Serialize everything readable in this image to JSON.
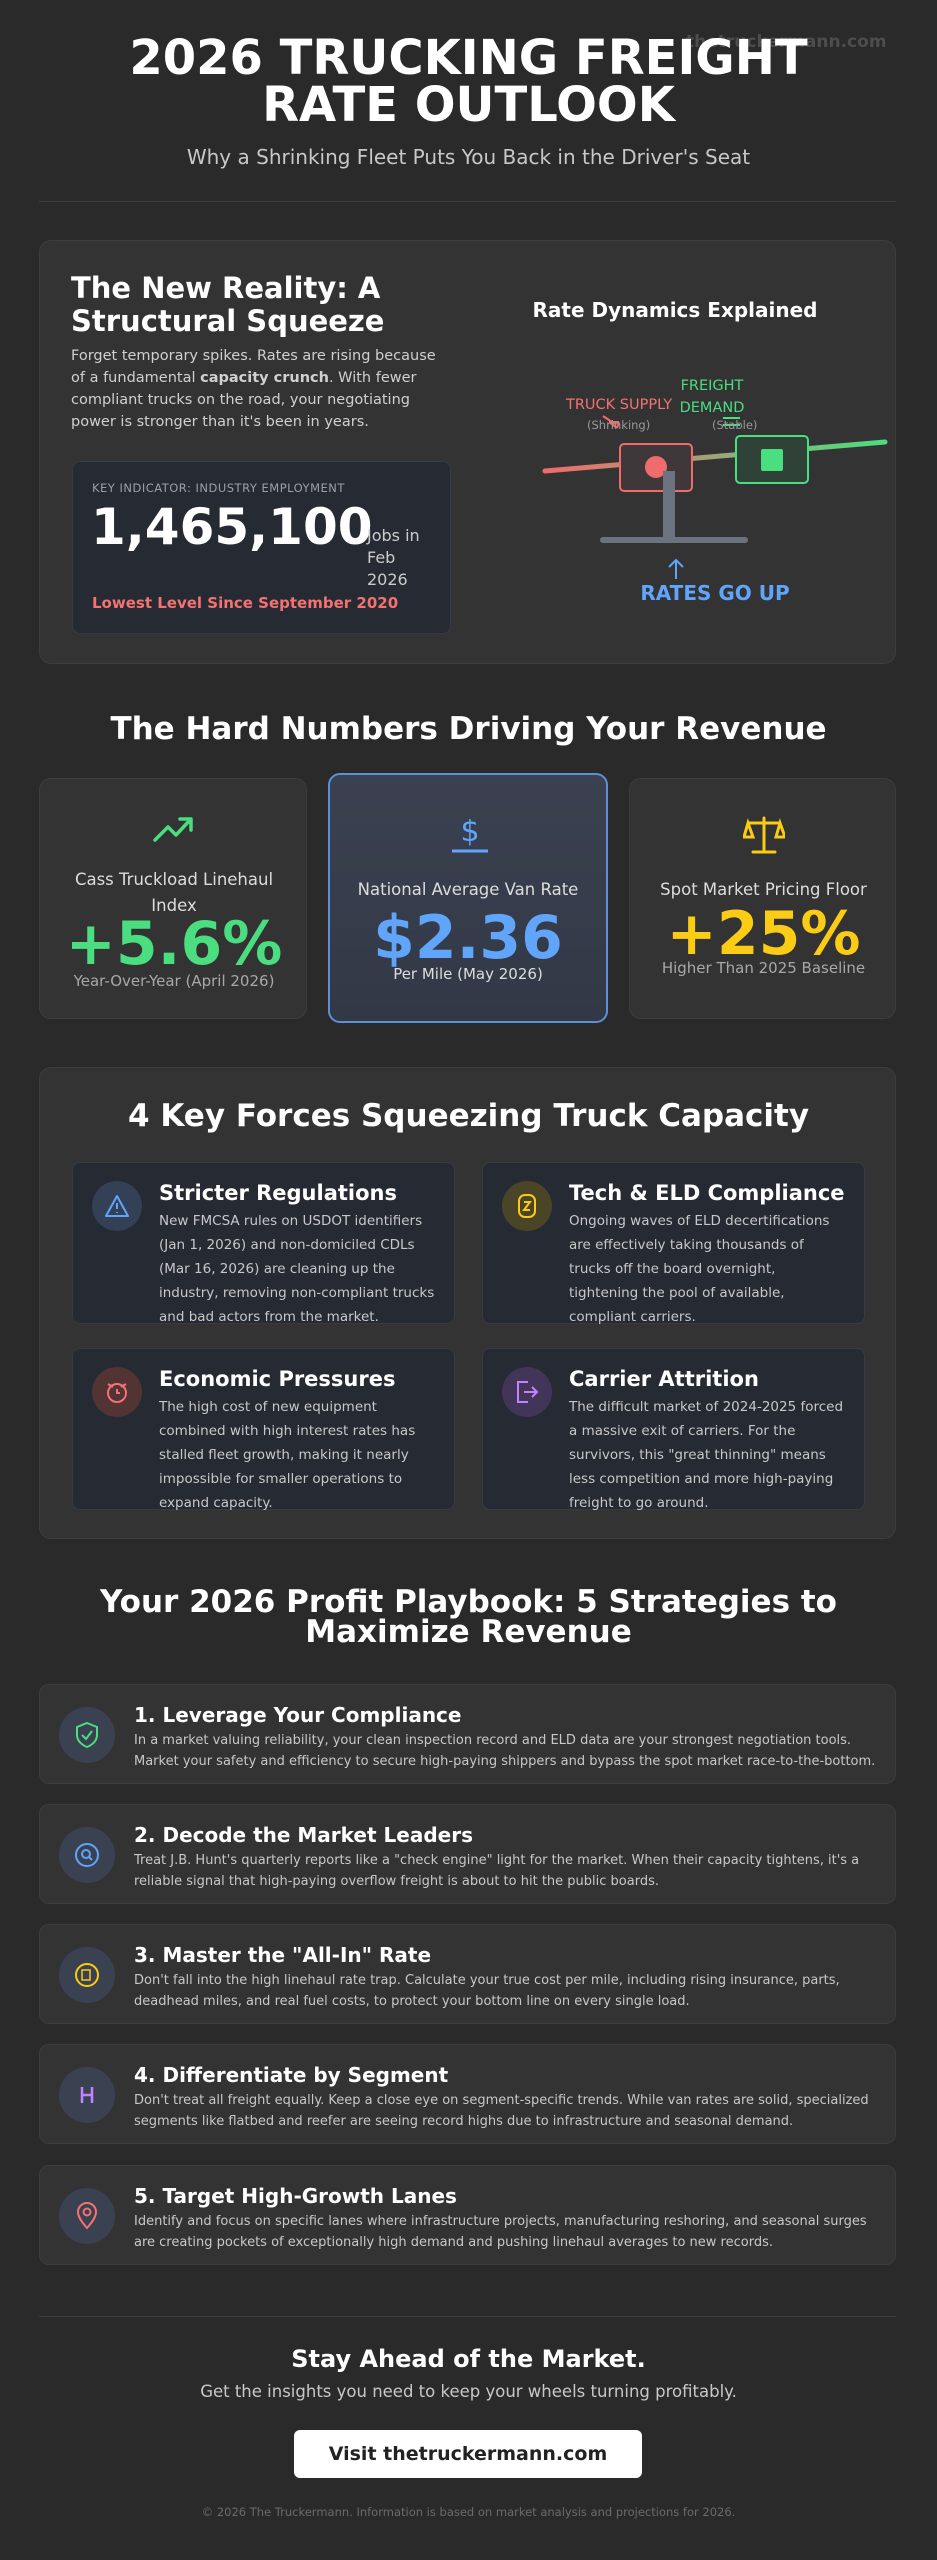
{
  "header": {
    "watermark": "thetruckermann.com",
    "title": "2026 TRUCKING FREIGHT RATE OUTLOOK",
    "subtitle": "Why a Shrinking Fleet Puts You Back in the Driver's Seat"
  },
  "reality": {
    "title": "The New Reality: A Structural Squeeze",
    "text_before": "Forget temporary spikes. Rates are rising because of a fundamental ",
    "text_bold": "capacity crunch",
    "text_after": ". With fewer compliant trucks on the road, your negotiating power is stronger than it's been in years.",
    "indicator": {
      "label": "KEY INDICATOR: INDUSTRY EMPLOYMENT",
      "value": "1,465,100",
      "unit": "Jobs in Feb 2026",
      "note": "Lowest Level Since September 2020"
    },
    "diagram": {
      "title": "Rate Dynamics Explained",
      "supply_label": "TRUCK SUPPLY",
      "supply_note": "(Shrinking)",
      "demand_label": "FREIGHT DEMAND",
      "demand_note": "(Stable)",
      "result": "RATES GO UP"
    }
  },
  "numbers": {
    "title": "The Hard Numbers Driving Your Revenue",
    "cards": [
      {
        "label": "Cass Truckload Linehaul Index",
        "value": "+5.6%",
        "note": "Year-Over-Year (April 2026)"
      },
      {
        "label": "National Average Van Rate",
        "value": "$2.36",
        "note": "Per Mile (May 2026)"
      },
      {
        "label": "Spot Market Pricing Floor",
        "value": "+25%",
        "note": "Higher Than 2025 Baseline"
      }
    ]
  },
  "forces": {
    "title": "4 Key Forces Squeezing Truck Capacity",
    "items": [
      {
        "title": "Stricter Regulations",
        "text": "New FMCSA rules on USDOT identifiers (Jan 1, 2026) and non-domiciled CDLs (Mar 16, 2026) are cleaning up the industry, removing non-compliant trucks and bad actors from the market."
      },
      {
        "title": "Tech & ELD Compliance",
        "text": "Ongoing waves of ELD decertifications are effectively taking thousands of trucks off the board overnight, tightening the pool of available, compliant carriers."
      },
      {
        "title": "Economic Pressures",
        "text": "The high cost of new equipment combined with high interest rates has stalled fleet growth, making it nearly impossible for smaller operations to expand capacity."
      },
      {
        "title": "Carrier Attrition",
        "text": "The difficult market of 2024-2025 forced a massive exit of carriers. For the survivors, this \"great thinning\" means less competition and more high-paying freight to go around."
      }
    ]
  },
  "playbook": {
    "title": "Your 2026 Profit Playbook: 5 Strategies to Maximize Revenue",
    "items": [
      {
        "title": "1. Leverage Your Compliance",
        "text": "In a market valuing reliability, your clean inspection record and ELD data are your strongest negotiation tools. Market your safety and efficiency to secure high-paying shippers and bypass the spot market race-to-the-bottom."
      },
      {
        "title": "2. Decode the Market Leaders",
        "text": "Treat J.B. Hunt's quarterly reports like a \"check engine\" light for the market. When their capacity tightens, it's a reliable signal that high-paying overflow freight is about to hit the public boards."
      },
      {
        "title": "3. Master the \"All-In\" Rate",
        "text": "Don't fall into the high linehaul rate trap. Calculate your true cost per mile, including rising insurance, parts, deadhead miles, and real fuel costs, to protect your bottom line on every single load."
      },
      {
        "title": "4. Differentiate by Segment",
        "text": "Don't treat all freight equally. Keep a close eye on segment-specific trends. While van rates are solid, specialized segments like flatbed and reefer are seeing record highs due to infrastructure and seasonal demand."
      },
      {
        "title": "5. Target High-Growth Lanes",
        "text": "Identify and focus on specific lanes where infrastructure projects, manufacturing reshoring, and seasonal surges are creating pockets of exceptionally high demand and pushing linehaul averages to new records."
      }
    ]
  },
  "cta": {
    "title": "Stay Ahead of the Market.",
    "text": "Get the insights you need to keep your wheels turning profitably.",
    "button": "Visit thetruckermann.com"
  },
  "footer": "© 2026 The Truckermann. Information is based on market analysis and projections for 2026."
}
